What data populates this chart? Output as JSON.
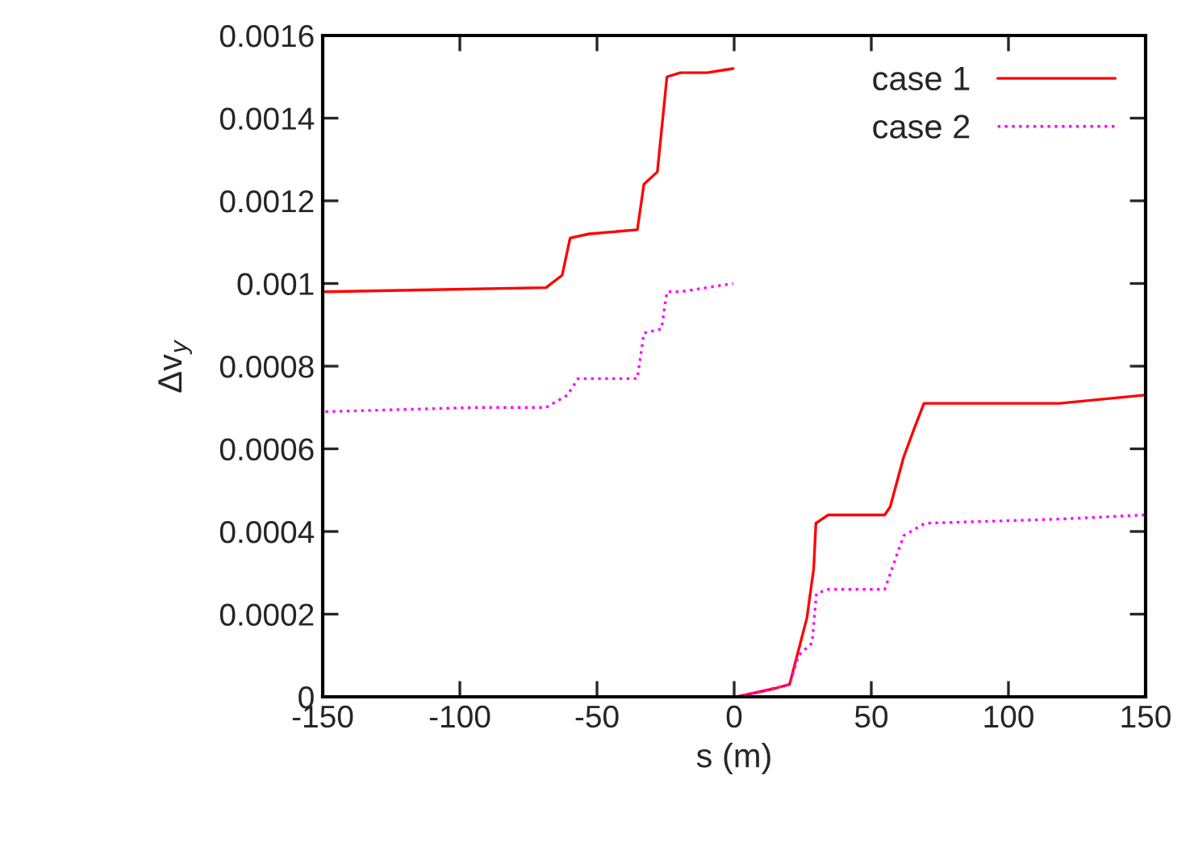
{
  "chart_data": {
    "type": "line",
    "xlabel": "s (m)",
    "ylabel": "Δv$_{y}$",
    "xlim": [
      -150,
      150
    ],
    "ylim": [
      0,
      0.0016
    ],
    "xticks": [
      -150,
      -100,
      -50,
      0,
      50,
      100,
      150
    ],
    "yticks": [
      0,
      0.0002,
      0.0004,
      0.0006,
      0.0008,
      0.001,
      0.0012,
      0.0014,
      0.0016
    ],
    "grid": false,
    "legend": "top right",
    "series": [
      {
        "name": "case 1",
        "color": "#ff0000",
        "line_style": "solid",
        "x": [
          -149,
          -68.6,
          -62.7,
          -59.8,
          -52.9,
          -35.3,
          -32.9,
          -28,
          -24.5,
          -19.6,
          -9.8,
          -0.4,
          0.5,
          1,
          14.7,
          20.2,
          26.5,
          29,
          29.8,
          34.3,
          54.9,
          56.9,
          61.8,
          65.7,
          69.2,
          118.6,
          149.6
        ],
        "values": [
          0.00098,
          0.00099,
          0.00102,
          0.00111,
          0.00112,
          0.00113,
          0.00124,
          0.00127,
          0.0015,
          0.00151,
          0.00151,
          0.00152,
          null,
          0,
          2e-05,
          3e-05,
          0.00019,
          0.00031,
          0.00042,
          0.00044,
          0.00044,
          0.00046,
          0.00058,
          0.00065,
          0.00071,
          0.00071,
          0.00073
        ]
      },
      {
        "name": "case 2",
        "color": "#ff00ff",
        "line_style": "dotted",
        "x": [
          -149,
          -94,
          -68.6,
          -60.8,
          -56.9,
          -35.3,
          -32.9,
          -26.5,
          -24.5,
          -19.6,
          -0.4,
          0.5,
          1,
          20.2,
          23.5,
          28.4,
          30,
          34.3,
          54.9,
          61.8,
          69.6,
          118.6,
          149.6
        ],
        "values": [
          0.00069,
          0.0007,
          0.0007,
          0.00073,
          0.00077,
          0.00077,
          0.00088,
          0.00089,
          0.00098,
          0.00098,
          0.001,
          null,
          0,
          3e-05,
          0.0001,
          0.00013,
          0.00025,
          0.00026,
          0.00026,
          0.00039,
          0.00042,
          0.00043,
          0.00044
        ]
      }
    ]
  }
}
